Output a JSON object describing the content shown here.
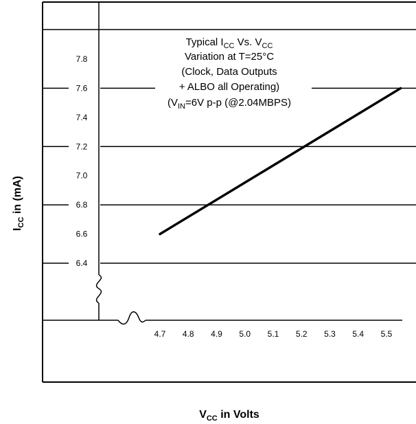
{
  "chart_data": {
    "type": "line",
    "title_lines": [
      {
        "parts": [
          {
            "t": "Typical I"
          },
          {
            "t": "CC",
            "sub": true
          },
          {
            "t": " Vs. V"
          },
          {
            "t": "CC",
            "sub": true
          }
        ]
      },
      {
        "parts": [
          {
            "t": "Variation at T=25°C"
          }
        ]
      },
      {
        "parts": [
          {
            "t": "(Clock, Data Outputs"
          }
        ]
      },
      {
        "parts": [
          {
            "t": "+ ALBO all Operating)"
          }
        ]
      },
      {
        "parts": [
          {
            "t": "(V"
          },
          {
            "t": "IN",
            "sub": true
          },
          {
            "t": "=6V p-p (@2.04MBPS)"
          }
        ]
      }
    ],
    "xlabel": {
      "parts": [
        {
          "t": "V"
        },
        {
          "t": "CC",
          "sub": true
        },
        {
          "t": " in Volts"
        }
      ]
    },
    "ylabel": {
      "parts": [
        {
          "t": "I"
        },
        {
          "t": "CC",
          "sub": true
        },
        {
          "t": "  in (mA)"
        }
      ]
    },
    "x_ticks": [
      "4.7",
      "4.8",
      "4.9",
      "5.0",
      "5.1",
      "5.2",
      "5.3",
      "5.4",
      "5.5"
    ],
    "y_ticks": [
      "7.8",
      "7.6",
      "7.4",
      "7.2",
      "7.0",
      "6.8",
      "6.6",
      "6.4"
    ],
    "xlim": [
      4.7,
      5.5
    ],
    "ylim": [
      6.4,
      7.8
    ],
    "grid": "horizontal gridlines at 6.4, 6.8, 7.2, 7.6",
    "axis_breaks": true,
    "series": [
      {
        "x": [
          4.7,
          5.55
        ],
        "y": [
          6.6,
          7.6
        ]
      }
    ]
  }
}
